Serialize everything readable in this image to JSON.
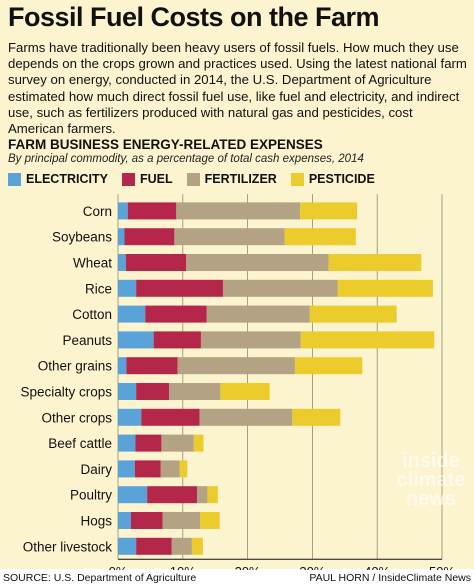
{
  "header": {
    "title": "Fossil Fuel Costs on the Farm",
    "intro": "Farms have traditionally been heavy users of fossil fuels. How much they use depends on the crops grown and practices used. Using the latest national farm survey on energy, conducted in 2014, the U.S. Department of Agriculture estimated how much direct fossil fuel use, like fuel and electricity, and indirect use, such as fertilizers produced with natural gas and pesticides, cost American farmers."
  },
  "colors": {
    "panel": "#fbf4cf",
    "electricity": "#5aa3d8",
    "fuel": "#b5274a",
    "fertilizer": "#b3a283",
    "pesticide": "#eccb2c"
  },
  "chart_data": {
    "type": "bar",
    "orientation": "horizontal",
    "stacked": true,
    "title": "FARM BUSINESS ENERGY-RELATED EXPENSES",
    "subtitle": "By principal commodity, as a percentage of total cash expenses, 2014",
    "categories": [
      "Corn",
      "Soybeans",
      "Wheat",
      "Rice",
      "Cotton",
      "Peanuts",
      "Other grains",
      "Specialty crops",
      "Other crops",
      "Beef cattle",
      "Dairy",
      "Poultry",
      "Hogs",
      "Other livestock"
    ],
    "series": [
      {
        "name": "ELECTRICITY",
        "color": "#5aa3d8",
        "values": [
          1.5,
          1.0,
          1.2,
          2.8,
          4.2,
          5.5,
          1.3,
          2.8,
          3.6,
          2.7,
          2.6,
          4.5,
          2.0,
          2.8
        ]
      },
      {
        "name": "FUEL",
        "color": "#b5274a",
        "values": [
          7.5,
          7.7,
          9.3,
          13.4,
          9.5,
          7.3,
          7.9,
          5.1,
          9.0,
          4.0,
          4.0,
          7.7,
          4.9,
          5.5
        ]
      },
      {
        "name": "FERTILIZER",
        "color": "#b3a283",
        "values": [
          19.1,
          17.0,
          22.0,
          17.7,
          15.9,
          15.4,
          18.1,
          7.9,
          14.3,
          5.0,
          2.9,
          1.6,
          5.8,
          3.1
        ]
      },
      {
        "name": "PESTICIDE",
        "color": "#eccb2c",
        "values": [
          8.8,
          11.0,
          14.3,
          14.7,
          13.4,
          20.6,
          10.4,
          7.6,
          7.4,
          1.5,
          1.2,
          1.6,
          3.0,
          1.7
        ]
      }
    ],
    "xlim": [
      0,
      50
    ],
    "xticks": [
      "0%",
      "10%",
      "20%",
      "30%",
      "40%",
      "50%"
    ],
    "grid": true,
    "legend_position": "top-left"
  },
  "watermark": "inside climate news",
  "footer": {
    "source": "SOURCE: U.S. Department of Agriculture",
    "credit": "PAUL HORN / InsideClimate News"
  }
}
